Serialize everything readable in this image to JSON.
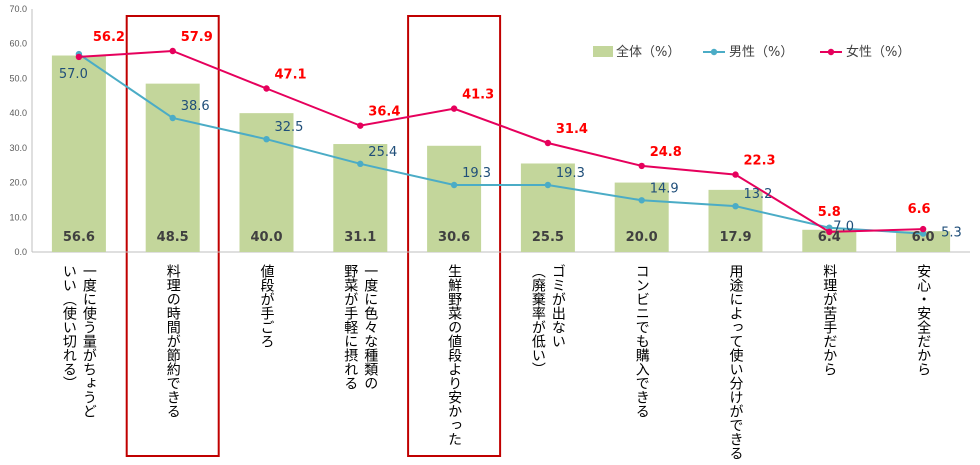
{
  "chart_data": {
    "type": "bar",
    "ylim": [
      0,
      70
    ],
    "yticks": [
      "0.0",
      "10.0",
      "20.0",
      "30.0",
      "40.0",
      "50.0",
      "60.0",
      "70.0"
    ],
    "categories": [
      [
        "一度に使う量がちょうど",
        "いい（使い切れる）"
      ],
      [
        "料理の時間が節約できる"
      ],
      [
        "値段が手ごろ"
      ],
      [
        "一度に色々な種類の",
        "野菜が手軽に摂れる"
      ],
      [
        "生鮮野菜の値段より安かった"
      ],
      [
        "ゴミが出ない",
        "（廃棄率が低い）"
      ],
      [
        "コンビニでも購入できる"
      ],
      [
        "用途によって使い分けができる"
      ],
      [
        "料理が苦手だから"
      ],
      [
        "安心・安全だから"
      ]
    ],
    "highlighted": [
      1,
      4
    ],
    "series": [
      {
        "name": "全体（%）",
        "kind": "bar",
        "color": "#c3d69b",
        "values": [
          56.6,
          48.5,
          40.0,
          31.1,
          30.6,
          25.5,
          20.0,
          17.9,
          6.4,
          6.0
        ],
        "labels": [
          "56.6",
          "48.5",
          "40.0",
          "31.1",
          "30.6",
          "25.5",
          "20.0",
          "17.9",
          "6.4",
          "6.0"
        ]
      },
      {
        "name": "男性（%）",
        "kind": "line",
        "color": "#4bacc6",
        "values": [
          57.0,
          38.6,
          32.5,
          25.4,
          19.3,
          19.3,
          14.9,
          13.2,
          7.0,
          5.3
        ],
        "labels": [
          "57.0",
          "38.6",
          "32.5",
          "25.4",
          "19.3",
          "19.3",
          "14.9",
          "13.2",
          "7.0",
          "5.3"
        ]
      },
      {
        "name": "女性（%）",
        "kind": "line",
        "color": "#e6005c",
        "values": [
          56.2,
          57.9,
          47.1,
          36.4,
          41.3,
          31.4,
          24.8,
          22.3,
          5.8,
          6.6
        ],
        "labels": [
          "56.2",
          "57.9",
          "47.1",
          "36.4",
          "41.3",
          "31.4",
          "24.8",
          "22.3",
          "5.8",
          "6.6"
        ]
      }
    ],
    "legend": "top-right",
    "grid": false
  }
}
